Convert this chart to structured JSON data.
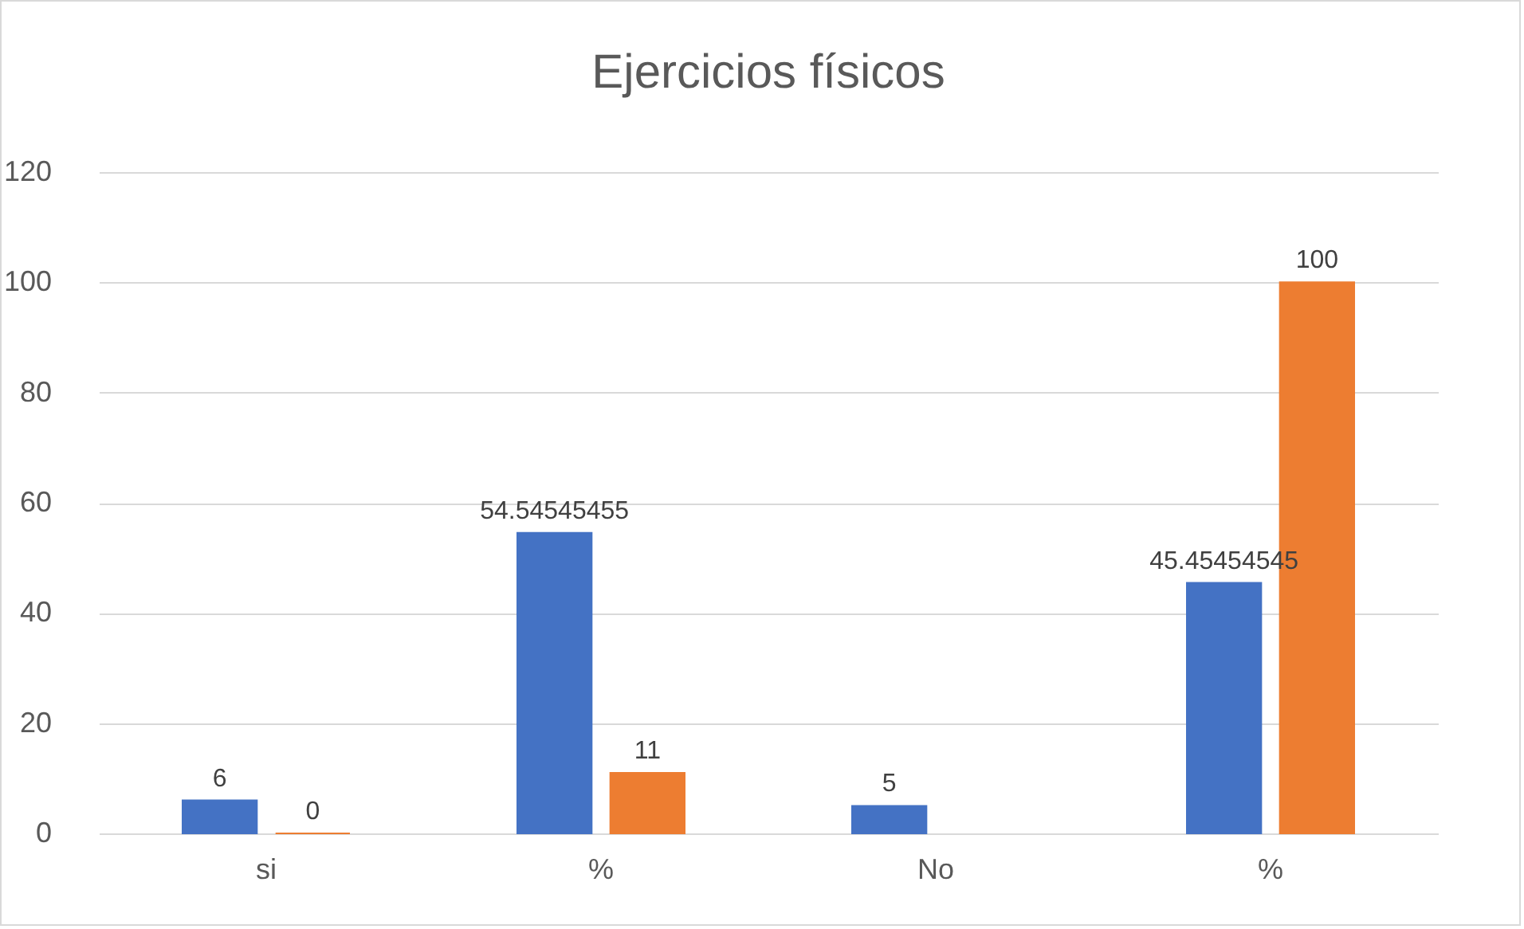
{
  "chart_data": {
    "type": "bar",
    "title": "Ejercicios físicos",
    "categories": [
      "si",
      "%",
      "No",
      "%"
    ],
    "series": [
      {
        "color": "#4472c4",
        "values": [
          6,
          54.54545455,
          5,
          45.45454545
        ]
      },
      {
        "color": "#ed7d31",
        "values": [
          0,
          11,
          null,
          100
        ]
      }
    ],
    "ylim": [
      0,
      120
    ],
    "yticks": [
      0,
      20,
      40,
      60,
      80,
      100,
      120
    ],
    "grid": "y",
    "data_labels": true,
    "legend": false
  }
}
